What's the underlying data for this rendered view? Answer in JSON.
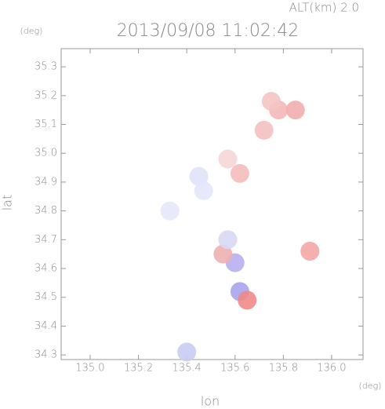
{
  "chart_data": {
    "type": "scatter",
    "title": "2013/09/08 11:02:42",
    "subtitle": "ALT(km) 2.0",
    "x_label": "lon",
    "y_label": "lat",
    "x_unit": "(deg)",
    "y_unit": "(deg)",
    "x": [
      135.78,
      135.85,
      135.72,
      135.75,
      135.62,
      135.57,
      135.45,
      135.47,
      135.6,
      135.55,
      135.62,
      135.4,
      135.57,
      135.91,
      135.33,
      135.65
    ],
    "y": [
      35.15,
      35.15,
      35.08,
      35.18,
      34.93,
      34.98,
      34.92,
      34.87,
      34.62,
      34.65,
      34.52,
      34.31,
      34.7,
      34.66,
      34.8,
      34.49
    ],
    "colors": [
      "#f4b8b8",
      "#f2aeae",
      "#f4c0c0",
      "#f6c4c4",
      "#f5bcbc",
      "#f6d6d6",
      "#dfe3f7",
      "#e4e6f8",
      "#b8b0ee",
      "#f0b0b0",
      "#a8a4ec",
      "#c8ccf2",
      "#d8d8f4",
      "#f3a6a6",
      "#e6e8f8",
      "#f08a8a"
    ],
    "xlim": [
      134.88,
      136.13
    ],
    "ylim": [
      34.284,
      35.363
    ],
    "xticks": [
      {
        "value": 135.0,
        "label": "135.0"
      },
      135.2,
      135.4,
      135.6,
      135.8,
      {
        "value": 136.0,
        "label": "136.0"
      }
    ],
    "yticks": [
      34.3,
      34.4,
      34.5,
      34.6,
      34.7,
      34.8,
      34.9,
      {
        "value": 35.0,
        "label": "35.0"
      },
      35.1,
      35.2,
      35.3
    ]
  }
}
